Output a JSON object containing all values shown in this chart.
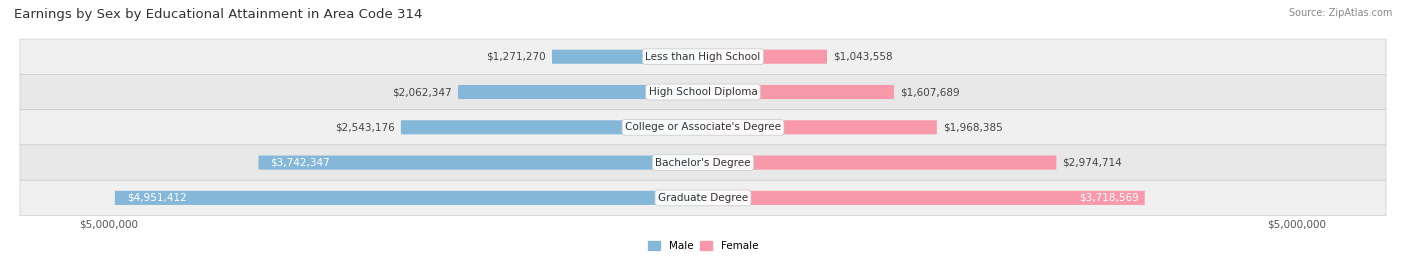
{
  "title": "Earnings by Sex by Educational Attainment in Area Code 314",
  "source": "Source: ZipAtlas.com",
  "categories": [
    "Less than High School",
    "High School Diploma",
    "College or Associate's Degree",
    "Bachelor's Degree",
    "Graduate Degree"
  ],
  "male_values": [
    1271270,
    2062347,
    2543176,
    3742347,
    4951412
  ],
  "female_values": [
    1043558,
    1607689,
    1968385,
    2974714,
    3718569
  ],
  "male_labels": [
    "$1,271,270",
    "$2,062,347",
    "$2,543,176",
    "$3,742,347",
    "$4,951,412"
  ],
  "female_labels": [
    "$1,043,558",
    "$1,607,689",
    "$1,968,385",
    "$2,974,714",
    "$3,718,569"
  ],
  "male_color": "#85b8d8",
  "female_color": "#f799aa",
  "row_bg_odd": "#f0f0f0",
  "row_bg_even": "#e8e8e8",
  "max_value": 5000000,
  "xlabel_left": "$5,000,000",
  "xlabel_right": "$5,000,000",
  "legend_male": "Male",
  "legend_female": "Female",
  "title_fontsize": 9.5,
  "label_fontsize": 7.5,
  "category_fontsize": 7.5,
  "axis_fontsize": 7.5,
  "male_label_inside_threshold": 3000000,
  "female_label_inside_threshold": 3500000
}
